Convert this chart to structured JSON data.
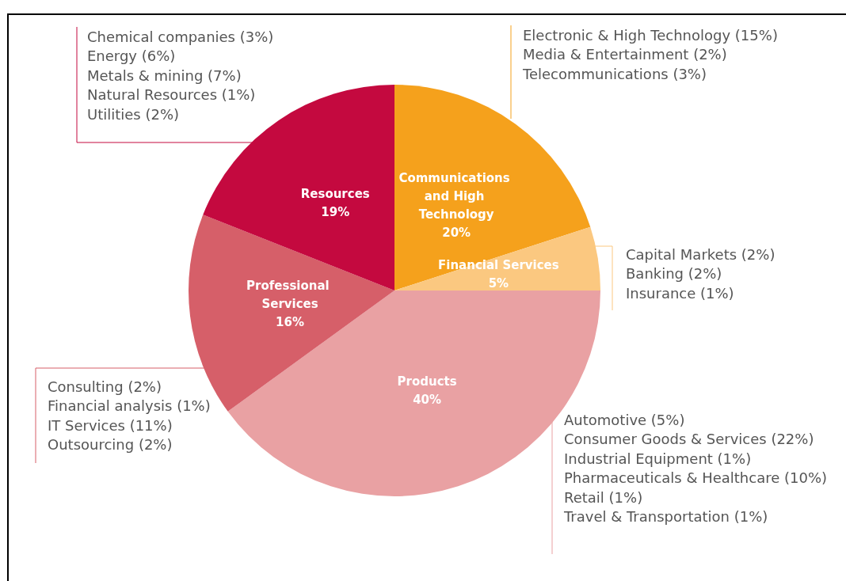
{
  "chart_data": {
    "type": "pie",
    "categories": [
      "Communications and High Technology",
      "Financial Services",
      "Products",
      "Professional Services",
      "Resources"
    ],
    "values": [
      20,
      5,
      40,
      16,
      19
    ],
    "colors": [
      "#f5a11c",
      "#fbc880",
      "#e9a1a3",
      "#d65f69",
      "#c4093f"
    ],
    "value_labels": [
      "20%",
      "5%",
      "40%",
      "16%",
      "19%"
    ],
    "legend": false,
    "annotations": [
      "Electronic & High Technology (15%)\nMedia & Entertainment (2%)\nTelecommunications (3%)",
      "Capital Markets (2%)\nBanking (2%)\nInsurance (1%)",
      "Automotive (5%)\nConsumer Goods & Services (22%)\nIndustrial Equipment (1%)\nPharmaceuticals & Healthcare (10%)\nRetail (1%)\nTravel & Transportation (1%)",
      "Consulting (2%)\nFinancial analysis (1%)\nIT Services (11%)\nOutsourcing (2%)",
      "Chemical companies (3%)\nEnergy (6%)\nMetals & mining (7%)\nNatural Resources (1%)\nUtilities (2%)"
    ]
  }
}
